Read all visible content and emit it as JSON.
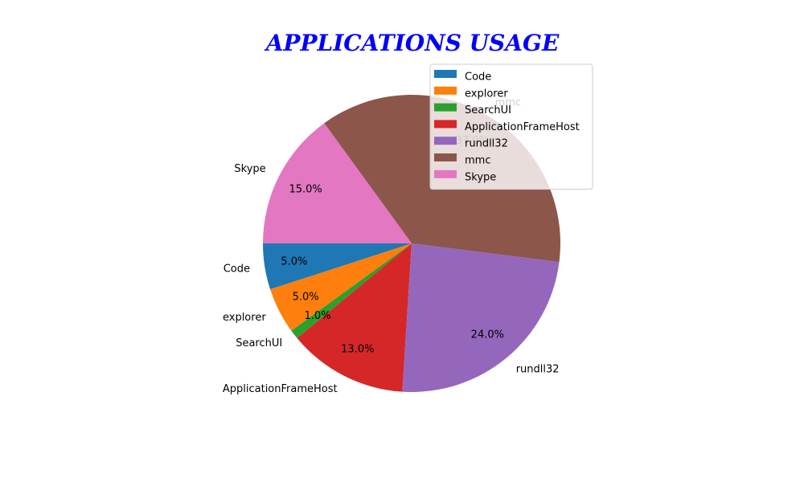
{
  "chart_data": {
    "type": "pie",
    "title": "APPLICATIONS USAGE",
    "categories": [
      "Code",
      "explorer",
      "SearchUI",
      "ApplicationFrameHost",
      "rundll32",
      "mmc",
      "Skype"
    ],
    "values": [
      5.0,
      5.0,
      1.0,
      13.0,
      24.0,
      37.0,
      15.0
    ],
    "value_labels": [
      "5.0%",
      "5.0%",
      "1.0%",
      "13.0%",
      "24.0%",
      "37.0%",
      "15.0%"
    ],
    "colors": [
      "#1f77b4",
      "#ff7f0e",
      "#2ca02c",
      "#d62728",
      "#9467bd",
      "#8c564b",
      "#e377c2"
    ],
    "start_angle_deg": 180,
    "direction": "counterclockwise",
    "legend": {
      "position": "upper-right",
      "entries": [
        "Code",
        "explorer",
        "SearchUI",
        "ApplicationFrameHost",
        "rundll32",
        "mmc",
        "Skype"
      ]
    }
  }
}
